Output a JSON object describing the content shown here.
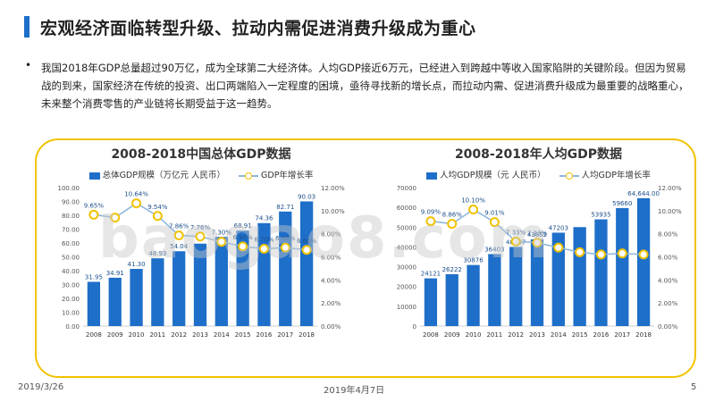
{
  "header": {
    "title": "宏观经济面临转型升级、拉动内需促进消费升级成为重心"
  },
  "paragraph": "我国2018年GDP总量超过90万亿，成为全球第二大经济体。人均GDP接近6万元，已经进入到跨越中等收入国家陷阱的关键阶段。但因为贸易战的到来，国家经济在传统的投资、出口两端陷入一定程度的困境，亟待寻找新的增长点，而拉动内需、促进消费升级成为最重要的战略重心，未来整个消费零售的产业链将长期受益于这一趋势。",
  "watermark": "baogao8.com",
  "footer": {
    "left_date": "2019/3/26",
    "center_date": "2019年4月7日",
    "page_number": "5"
  },
  "colors": {
    "bar": "#1e6fc9",
    "line": "#8fb7de",
    "marker": "#f2c200",
    "frame": "#f2c200",
    "accent": "#1e6fc9"
  },
  "chart_data": [
    {
      "type": "bar",
      "title": "2008-2018中国总体GDP数据",
      "categories": [
        "2008",
        "2009",
        "2010",
        "2011",
        "2012",
        "2013",
        "2014",
        "2015",
        "2016",
        "2017",
        "2018"
      ],
      "series": [
        {
          "name": "总体GDP规模（万亿元 人民币）",
          "type": "bar",
          "values": [
            31.95,
            34.91,
            41.3,
            48.93,
            54.04,
            59.52,
            64.4,
            68.91,
            74.36,
            82.71,
            90.03
          ],
          "labels": [
            "31.95",
            "34.91",
            "41.30",
            "48.93",
            "54.04",
            "",
            "",
            "68.91",
            "74.36",
            "82.71",
            "90.03"
          ]
        },
        {
          "name": "GDP年增长率",
          "type": "line",
          "axis": "right",
          "values": [
            9.65,
            9.4,
            10.64,
            9.54,
            7.86,
            7.76,
            7.3,
            6.9,
            6.7,
            6.8,
            6.6
          ],
          "labels": [
            "9.65%",
            "",
            "10.64%",
            "9.54%",
            "7.86%",
            "7.76%",
            "7.30%",
            "6.90%",
            "6.70%",
            "6.80%",
            "6.60%"
          ]
        }
      ],
      "y_left": {
        "min": 0,
        "max": 100,
        "ticks": [
          "0.00",
          "10.00",
          "20.00",
          "30.00",
          "40.00",
          "50.00",
          "60.00",
          "70.00",
          "80.00",
          "90.00",
          "100.00"
        ]
      },
      "y_right": {
        "min": 0,
        "max": 12,
        "ticks": [
          "0.00%",
          "2.00%",
          "4.00%",
          "6.00%",
          "8.00%",
          "10.00%",
          "12.00%"
        ]
      },
      "legend": "top"
    },
    {
      "type": "bar",
      "title": "2008-2018年人均GDP数据",
      "categories": [
        "2008",
        "2009",
        "2010",
        "2011",
        "2012",
        "2013",
        "2014",
        "2015",
        "2016",
        "2017",
        "2018"
      ],
      "series": [
        {
          "name": "人均GDP规模（元 人民币）",
          "type": "bar",
          "values": [
            24121,
            26222,
            30876,
            36403,
            40007,
            43852,
            47203,
            50028,
            53935,
            59660,
            64644
          ],
          "labels": [
            "24121",
            "26222",
            "30876",
            "36403",
            "40007",
            "43852",
            "47203",
            "",
            "53935",
            "59660",
            "64,644.00"
          ]
        },
        {
          "name": "人均GDP年增长率",
          "type": "line",
          "axis": "right",
          "values": [
            9.09,
            8.86,
            10.1,
            9.01,
            7.33,
            7.23,
            6.8,
            6.4,
            6.2,
            6.3,
            6.2
          ],
          "labels": [
            "9.09%",
            "8.86%",
            "10.10%",
            "9.01%",
            "7.33%",
            "7.23%",
            "",
            "",
            "",
            "",
            ""
          ]
        }
      ],
      "y_left": {
        "min": 0,
        "max": 70000,
        "ticks": [
          "0",
          "10000",
          "20000",
          "30000",
          "40000",
          "50000",
          "60000",
          "70000"
        ]
      },
      "y_right": {
        "min": 0,
        "max": 12,
        "ticks": [
          "0.00%",
          "2.00%",
          "4.00%",
          "6.00%",
          "8.00%",
          "10.00%",
          "12.00%"
        ]
      },
      "legend": "top"
    }
  ]
}
